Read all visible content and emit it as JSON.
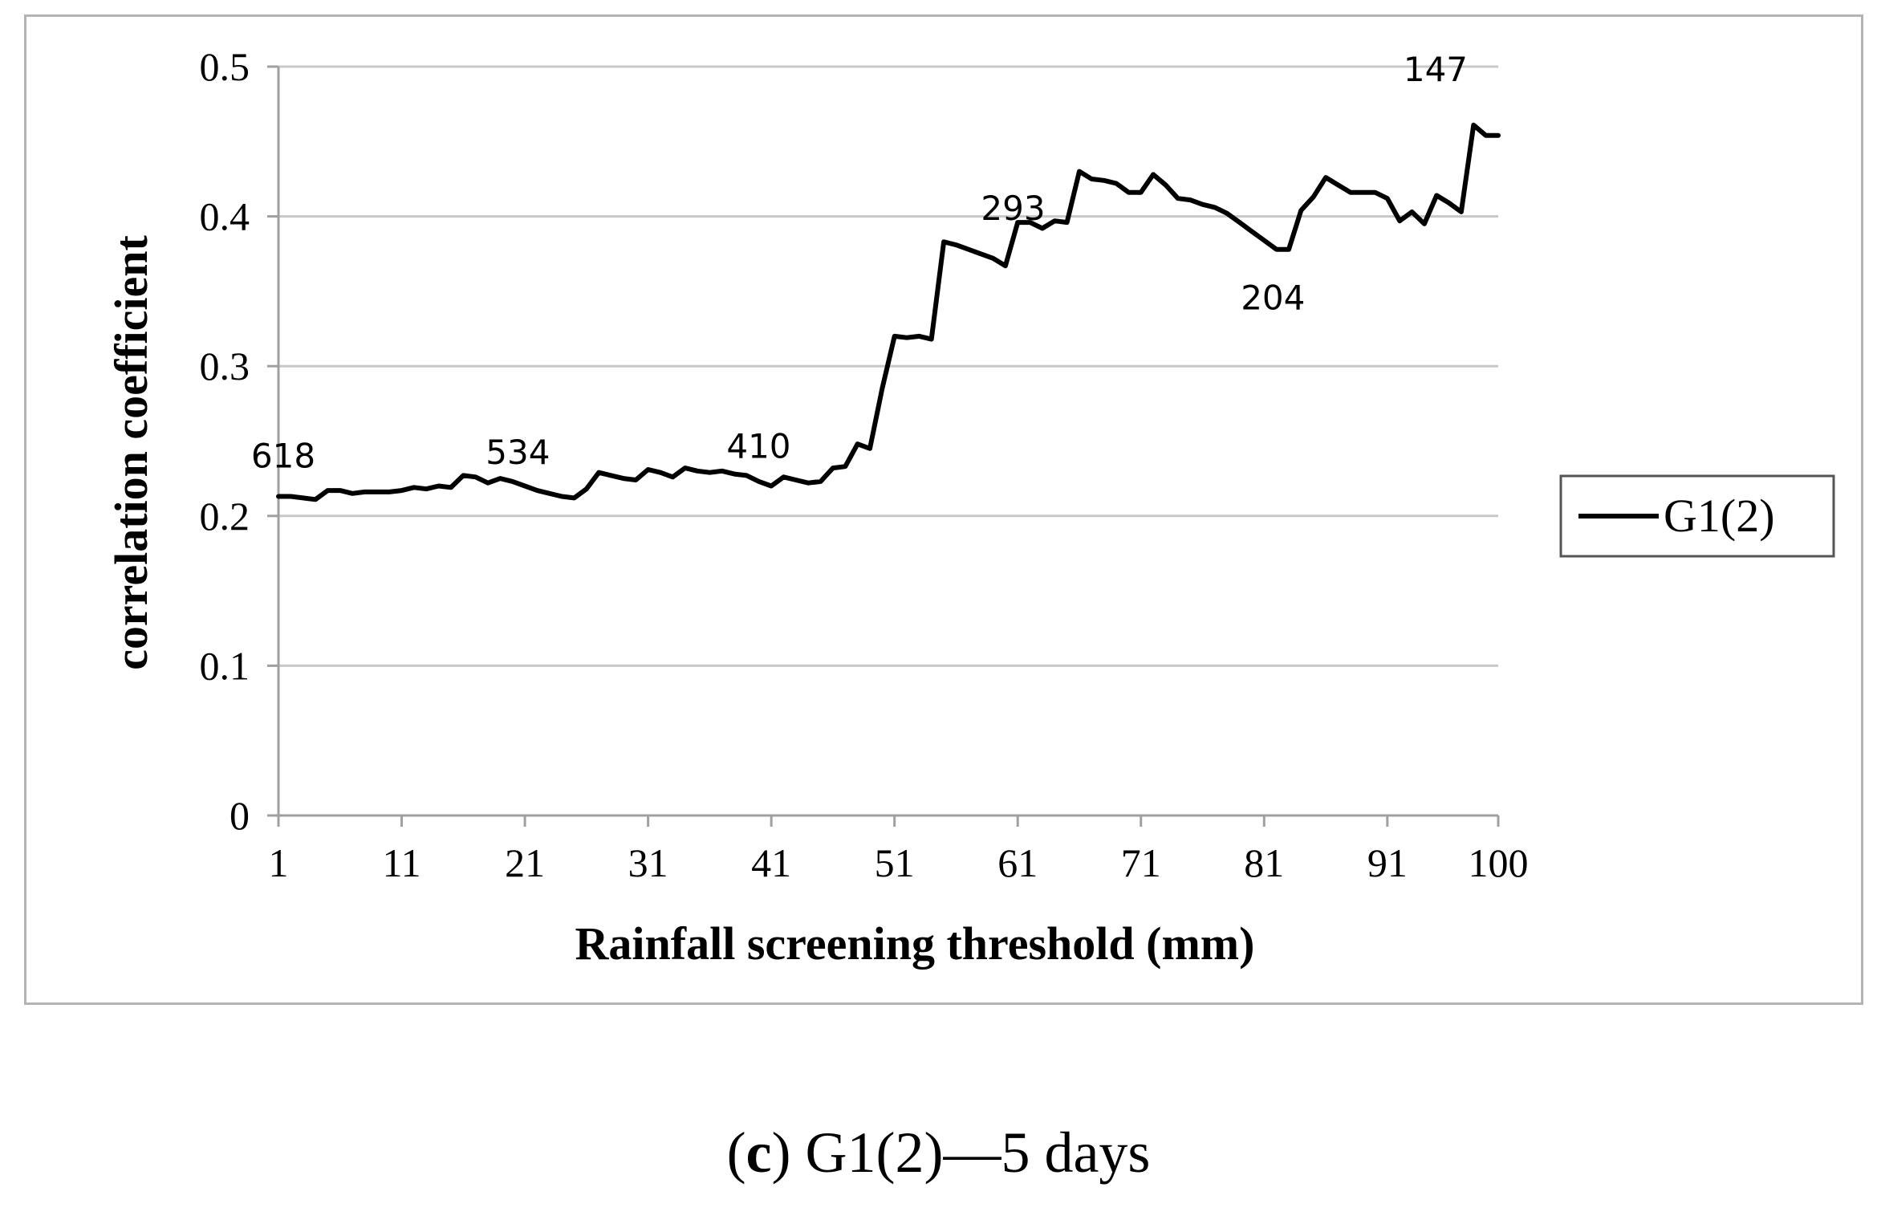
{
  "caption": {
    "open_paren": "(",
    "letter": "c",
    "rest": ") G1(2)—5 days"
  },
  "chart_data": {
    "type": "line",
    "title": "",
    "xlabel": "Rainfall screening threshold (mm)",
    "ylabel": "correlation coefficient",
    "xlim": [
      1,
      100
    ],
    "ylim": [
      0,
      0.5
    ],
    "grid": true,
    "legend_position": "right",
    "x_ticks": [
      1,
      11,
      21,
      31,
      41,
      51,
      61,
      71,
      81,
      91,
      100
    ],
    "y_ticks": [
      0,
      0.1,
      0.2,
      0.3,
      0.4,
      0.5
    ],
    "y_tick_labels": [
      "0",
      "0.1",
      "0.2",
      "0.3",
      "0.4",
      "0.5"
    ],
    "colors": {
      "line": "#000000",
      "grid": "#c8c8c8",
      "axis": "#a0a0a0"
    },
    "series": [
      {
        "name": "G1(2)",
        "x": [
          1,
          2,
          3,
          4,
          5,
          6,
          7,
          8,
          9,
          10,
          11,
          12,
          13,
          14,
          15,
          16,
          17,
          18,
          19,
          20,
          21,
          22,
          23,
          24,
          25,
          26,
          27,
          28,
          29,
          30,
          31,
          32,
          33,
          34,
          35,
          36,
          37,
          38,
          39,
          40,
          41,
          42,
          43,
          44,
          45,
          46,
          47,
          48,
          49,
          50,
          51,
          52,
          53,
          54,
          55,
          56,
          57,
          58,
          59,
          60,
          61,
          62,
          63,
          64,
          65,
          66,
          67,
          68,
          69,
          70,
          71,
          72,
          73,
          74,
          75,
          76,
          77,
          78,
          79,
          80,
          81,
          82,
          83,
          84,
          85,
          86,
          87,
          88,
          89,
          90,
          91,
          92,
          93,
          94,
          95,
          96,
          97,
          98,
          99,
          100
        ],
        "values": [
          0.213,
          0.213,
          0.212,
          0.211,
          0.217,
          0.217,
          0.215,
          0.216,
          0.216,
          0.216,
          0.217,
          0.219,
          0.218,
          0.22,
          0.219,
          0.227,
          0.226,
          0.222,
          0.225,
          0.223,
          0.22,
          0.217,
          0.215,
          0.213,
          0.212,
          0.218,
          0.229,
          0.227,
          0.225,
          0.224,
          0.231,
          0.229,
          0.226,
          0.232,
          0.23,
          0.229,
          0.23,
          0.228,
          0.227,
          0.223,
          0.22,
          0.226,
          0.224,
          0.222,
          0.223,
          0.232,
          0.233,
          0.248,
          0.245,
          0.285,
          0.32,
          0.319,
          0.32,
          0.318,
          0.383,
          0.381,
          0.378,
          0.375,
          0.372,
          0.367,
          0.396,
          0.396,
          0.392,
          0.397,
          0.396,
          0.43,
          0.425,
          0.424,
          0.422,
          0.416,
          0.416,
          0.428,
          0.421,
          0.412,
          0.411,
          0.408,
          0.406,
          0.402,
          0.396,
          0.39,
          0.384,
          0.378,
          0.378,
          0.404,
          0.413,
          0.426,
          0.421,
          0.416,
          0.416,
          0.416,
          0.412,
          0.397,
          0.403,
          0.395,
          0.414,
          0.409,
          0.403,
          0.461,
          0.454,
          0.454
        ]
      }
    ],
    "annotations": [
      {
        "text": "618",
        "x": 1,
        "y": 0.213
      },
      {
        "text": "534",
        "x": 19,
        "y": 0.225
      },
      {
        "text": "410",
        "x": 39,
        "y": 0.227
      },
      {
        "text": "293",
        "x": 59,
        "y": 0.372
      },
      {
        "text": "204",
        "x": 81,
        "y": 0.384
      },
      {
        "text": "147",
        "x": 97,
        "y": 0.461
      }
    ]
  }
}
